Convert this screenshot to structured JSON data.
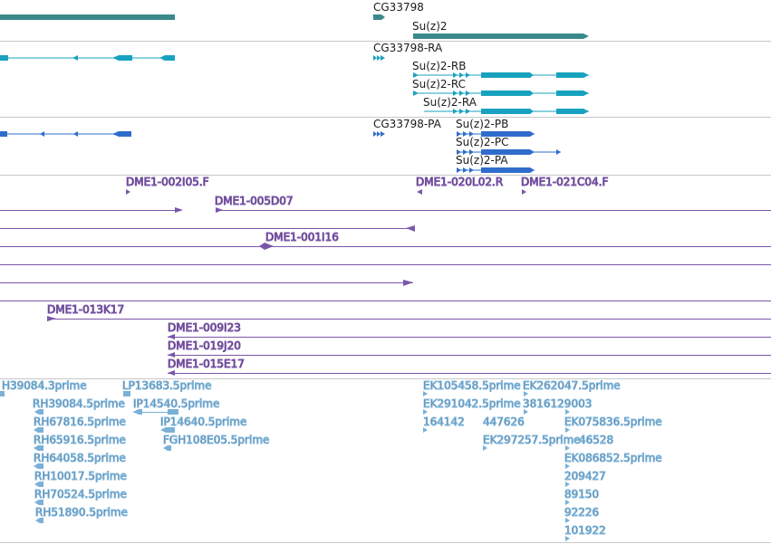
{
  "colors": {
    "gene": "#3a8a8c",
    "transcript": "#18a2bf",
    "protein": "#2f6ccc",
    "clone": "#7a56a8",
    "est": "#7ab0d6",
    "divider": "#c8c8c8"
  },
  "tracks": {
    "genes": {
      "items": [
        {
          "label": ""
        },
        {
          "label": "CG33798"
        },
        {
          "label": "Su(z)2"
        }
      ]
    },
    "transcripts": {
      "items": [
        {
          "label": ""
        },
        {
          "label": "CG33798-RA"
        },
        {
          "label": "Su(z)2-RB"
        },
        {
          "label": "Su(z)2-RC"
        },
        {
          "label": "Su(z)2-RA"
        }
      ]
    },
    "proteins": {
      "items": [
        {
          "label": ""
        },
        {
          "label": "CG33798-PA"
        },
        {
          "label": "Su(z)2-PB"
        },
        {
          "label": "Su(z)2-PC"
        },
        {
          "label": "Su(z)2-PA"
        }
      ]
    },
    "clones": {
      "items": [
        {
          "label": "DME1-002I05.F"
        },
        {
          "label": "DME1-020L02.R"
        },
        {
          "label": "DME1-021C04.F"
        },
        {
          "label": ""
        },
        {
          "label": "DME1-005D07"
        },
        {
          "label": ""
        },
        {
          "label": "DME1-001I16"
        },
        {
          "label": ""
        },
        {
          "label": ""
        },
        {
          "label": ""
        },
        {
          "label": "DME1-013K17"
        },
        {
          "label": "DME1-009I23"
        },
        {
          "label": "DME1-019J20"
        },
        {
          "label": "DME1-015E17"
        }
      ]
    },
    "ests": {
      "items": [
        {
          "label": "H39084.3prime"
        },
        {
          "label": "LP13683.5prime"
        },
        {
          "label": "EK105458.5prime"
        },
        {
          "label": "EK262047.5prime"
        },
        {
          "label": "RH39084.5prime"
        },
        {
          "label": "IP14540.5prime"
        },
        {
          "label": "EK291042.5prime"
        },
        {
          "label": "3816129003"
        },
        {
          "label": "RH67816.5prime"
        },
        {
          "label": "IP14640.5prime"
        },
        {
          "label": "164142"
        },
        {
          "label": "447626"
        },
        {
          "label": "EK075836.5prime"
        },
        {
          "label": "RH65916.5prime"
        },
        {
          "label": "FGH108E05.5prime"
        },
        {
          "label": "EK297257.5prime"
        },
        {
          "label": "46528"
        },
        {
          "label": "RH64058.5prime"
        },
        {
          "label": "EK086852.5prime"
        },
        {
          "label": "RH10017.5prime"
        },
        {
          "label": "209427"
        },
        {
          "label": "RH70524.5prime"
        },
        {
          "label": "89150"
        },
        {
          "label": "RH51890.5prime"
        },
        {
          "label": "92226"
        },
        {
          "label": "101922"
        }
      ]
    }
  }
}
